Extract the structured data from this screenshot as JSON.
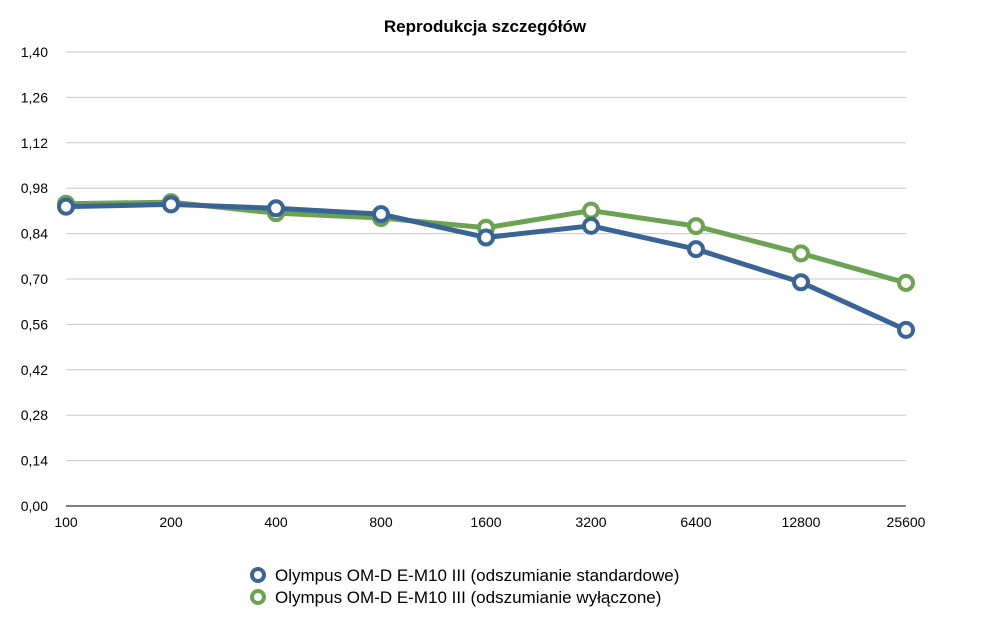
{
  "chart_data": {
    "type": "line",
    "title": "Reprodukcja szczegółów",
    "xlabel": "",
    "ylabel": "",
    "categories": [
      "100",
      "200",
      "400",
      "800",
      "1600",
      "3200",
      "6400",
      "12800",
      "25600"
    ],
    "y_ticks": [
      "0,00",
      "0,14",
      "0,28",
      "0,42",
      "0,56",
      "0,70",
      "0,84",
      "0,98",
      "1,12",
      "1,26",
      "1,40"
    ],
    "ylim": [
      0,
      1.4
    ],
    "grid": true,
    "legend_position": "bottom",
    "series": [
      {
        "name": "Olympus OM-D E-M10 III (odszumianie standardowe)",
        "color": "#3a6496",
        "values": [
          0.923,
          0.93,
          0.918,
          0.9,
          0.828,
          0.864,
          0.792,
          0.69,
          0.543
        ]
      },
      {
        "name": "Olympus OM-D E-M10 III (odszumianie wyłączone)",
        "color": "#6ba353",
        "values": [
          0.932,
          0.937,
          0.903,
          0.888,
          0.858,
          0.911,
          0.863,
          0.779,
          0.688
        ]
      }
    ]
  }
}
